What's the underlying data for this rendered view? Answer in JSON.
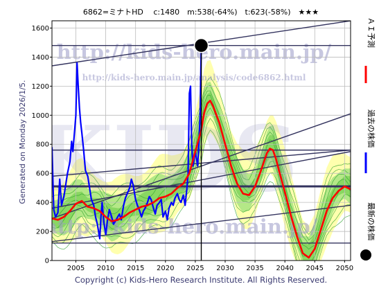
{
  "header": {
    "title": "6862=ミナトHD　 c:1480　m:538(-64%)　t:623(-58%)　★★★"
  },
  "side_note": "Generated on Monday 2026/1/5.",
  "watermark": {
    "url_main": "http://kids-hero.main.jp/",
    "url_sub": "http://kids-hero.main.jp/analysis/code6862.html",
    "big": "KIDS"
  },
  "legend": [
    {
      "label": "ＡＩ予測",
      "color": "#ff0000"
    },
    {
      "label": "過去の株価",
      "color": "#0000ff"
    },
    {
      "label": "最新の株価",
      "color": "#000000"
    }
  ],
  "footer": "Copyright (c) Kids-Hero Research Institute. All Rights Reserved.",
  "chart_data": {
    "type": "line",
    "xlim": [
      2001,
      2051
    ],
    "ylim": [
      0,
      1650
    ],
    "x_ticks": [
      2005,
      2010,
      2015,
      2020,
      2025,
      2030,
      2035,
      2040,
      2045,
      2050
    ],
    "y_ticks": [
      0,
      200,
      400,
      600,
      800,
      1000,
      1200,
      1400,
      1600
    ],
    "latest": {
      "x": 2026.0,
      "y": 1480
    },
    "hlines": [
      1480,
      760,
      510,
      120
    ],
    "trend_lines": [
      {
        "x": [
          2001,
          2051
        ],
        "y": [
          1340,
          1650
        ]
      },
      {
        "x": [
          2001,
          2051
        ],
        "y": [
          580,
          760
        ]
      },
      {
        "x": [
          2001,
          2051
        ],
        "y": [
          290,
          1010
        ]
      },
      {
        "x": [
          2001,
          2051
        ],
        "y": [
          360,
          750
        ]
      },
      {
        "x": [
          2001,
          2051
        ],
        "y": [
          130,
          380
        ]
      }
    ],
    "series": [
      {
        "name": "過去の株価",
        "color": "#0000ff",
        "x": [
          2001.0,
          2001.3,
          2001.6,
          2002.0,
          2002.3,
          2002.6,
          2003.0,
          2003.3,
          2003.6,
          2004.0,
          2004.3,
          2004.5,
          2004.8,
          2005.0,
          2005.2,
          2005.4,
          2005.6,
          2005.8,
          2006.0,
          2006.3,
          2006.6,
          2007.0,
          2007.3,
          2007.6,
          2008.0,
          2008.3,
          2008.6,
          2009.0,
          2009.2,
          2009.4,
          2009.7,
          2010.0,
          2010.3,
          2010.6,
          2011.0,
          2011.3,
          2011.6,
          2012.0,
          2012.3,
          2012.6,
          2013.0,
          2013.3,
          2013.6,
          2014.0,
          2014.3,
          2014.6,
          2015.0,
          2015.3,
          2015.6,
          2016.0,
          2016.3,
          2016.6,
          2017.0,
          2017.3,
          2017.6,
          2018.0,
          2018.3,
          2018.6,
          2019.0,
          2019.3,
          2019.6,
          2020.0,
          2020.3,
          2020.6,
          2021.0,
          2021.3,
          2021.6,
          2022.0,
          2022.3,
          2022.6,
          2023.0,
          2023.3,
          2023.6,
          2023.8,
          2024.0,
          2024.2,
          2024.4,
          2024.6,
          2024.8,
          2025.0,
          2025.2,
          2025.4,
          2025.6,
          2025.8,
          2026.0
        ],
        "y": [
          780,
          350,
          300,
          330,
          560,
          380,
          440,
          520,
          600,
          680,
          820,
          750,
          900,
          1000,
          1360,
          1200,
          1050,
          950,
          880,
          760,
          620,
          580,
          500,
          420,
          380,
          300,
          250,
          150,
          300,
          400,
          260,
          180,
          280,
          350,
          300,
          250,
          270,
          300,
          320,
          280,
          380,
          430,
          460,
          500,
          560,
          520,
          420,
          380,
          350,
          300,
          340,
          360,
          400,
          440,
          420,
          360,
          320,
          380,
          400,
          420,
          300,
          340,
          280,
          360,
          400,
          380,
          430,
          460,
          420,
          400,
          450,
          380,
          500,
          600,
          1150,
          1200,
          800,
          650,
          700,
          750,
          700,
          650,
          800,
          1000,
          1480
        ]
      },
      {
        "name": "ＡＩ予測",
        "color": "#ff0000",
        "x": [
          2001.0,
          2002.0,
          2003.0,
          2004.0,
          2005.0,
          2006.0,
          2007.0,
          2008.0,
          2009.0,
          2010.0,
          2011.0,
          2012.0,
          2013.0,
          2014.0,
          2015.0,
          2016.0,
          2017.0,
          2018.0,
          2019.0,
          2020.0,
          2021.0,
          2022.0,
          2023.0,
          2024.0,
          2025.0,
          2026.0,
          2026.5,
          2027.0,
          2027.5,
          2028.0,
          2029.0,
          2030.0,
          2031.0,
          2032.0,
          2033.0,
          2034.0,
          2035.0,
          2036.0,
          2037.0,
          2037.5,
          2038.0,
          2038.5,
          2039.0,
          2040.0,
          2041.0,
          2042.0,
          2043.0,
          2044.0,
          2045.0,
          2046.0,
          2047.0,
          2048.0,
          2049.0,
          2050.0,
          2051.0
        ],
        "y": [
          290,
          280,
          300,
          340,
          390,
          410,
          370,
          360,
          340,
          300,
          270,
          280,
          300,
          330,
          350,
          370,
          380,
          400,
          430,
          440,
          460,
          500,
          530,
          600,
          750,
          900,
          1020,
          1080,
          1100,
          1060,
          950,
          800,
          650,
          530,
          460,
          450,
          510,
          620,
          740,
          770,
          760,
          700,
          620,
          470,
          310,
          170,
          50,
          20,
          80,
          210,
          340,
          430,
          480,
          510,
          490
        ]
      }
    ]
  }
}
